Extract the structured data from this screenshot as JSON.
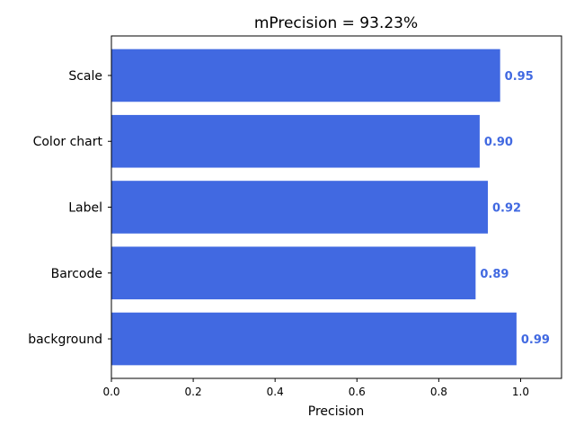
{
  "chart_data": {
    "type": "bar",
    "orientation": "horizontal",
    "title": "mPrecision = 93.23%",
    "xlabel": "Precision",
    "ylabel": "",
    "xlim": [
      0,
      1.1
    ],
    "x_ticks": [
      "0.0",
      "0.2",
      "0.4",
      "0.6",
      "0.8",
      "1.0"
    ],
    "x_tick_values": [
      0.0,
      0.2,
      0.4,
      0.6,
      0.8,
      1.0
    ],
    "categories": [
      "Scale",
      "Color chart",
      "Label",
      "Barcode",
      "background"
    ],
    "values": [
      0.95,
      0.9,
      0.92,
      0.89,
      0.99
    ],
    "value_labels": [
      "0.95",
      "0.90",
      "0.92",
      "0.89",
      "0.99"
    ],
    "bar_color": "#4169e1",
    "label_color": "#4169e1",
    "grid": false,
    "legend": "none"
  }
}
